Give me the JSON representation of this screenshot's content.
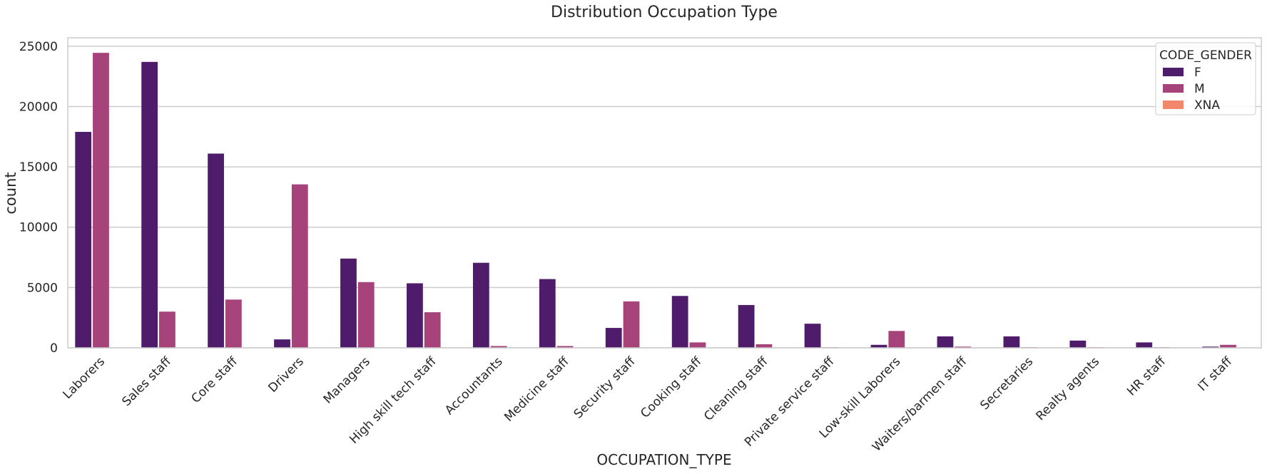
{
  "chart_data": {
    "type": "bar",
    "title": "Distribution Occupation Type",
    "xlabel": "OCCUPATION_TYPE",
    "ylabel": "count",
    "ylim": [
      0,
      25700
    ],
    "yticks": [
      0,
      5000,
      10000,
      15000,
      20000,
      25000
    ],
    "grid": true,
    "legend": {
      "title": "CODE_GENDER",
      "placement": "top-right"
    },
    "categories": [
      "Laborers",
      "Sales staff",
      "Core staff",
      "Drivers",
      "Managers",
      "High skill tech staff",
      "Accountants",
      "Medicine staff",
      "Security staff",
      "Cooking staff",
      "Cleaning staff",
      "Private service staff",
      "Low-skill Laborers",
      "Waiters/barmen staff",
      "Secretaries",
      "Realty agents",
      "HR staff",
      "IT staff"
    ],
    "series": [
      {
        "name": "F",
        "color": "#4f1c6c",
        "values": [
          17900,
          23700,
          16100,
          700,
          7400,
          5350,
          7050,
          5700,
          1650,
          4300,
          3550,
          2000,
          250,
          950,
          950,
          600,
          450,
          100
        ]
      },
      {
        "name": "M",
        "color": "#a5437a",
        "values": [
          24450,
          3000,
          4000,
          13550,
          5450,
          2950,
          150,
          150,
          3850,
          450,
          300,
          50,
          1400,
          100,
          50,
          50,
          50,
          250
        ]
      },
      {
        "name": "XNA",
        "color": "#f1886b",
        "values": [
          0,
          0,
          0,
          0,
          0,
          0,
          0,
          0,
          0,
          0,
          0,
          0,
          0,
          0,
          0,
          0,
          0,
          0
        ]
      }
    ]
  }
}
